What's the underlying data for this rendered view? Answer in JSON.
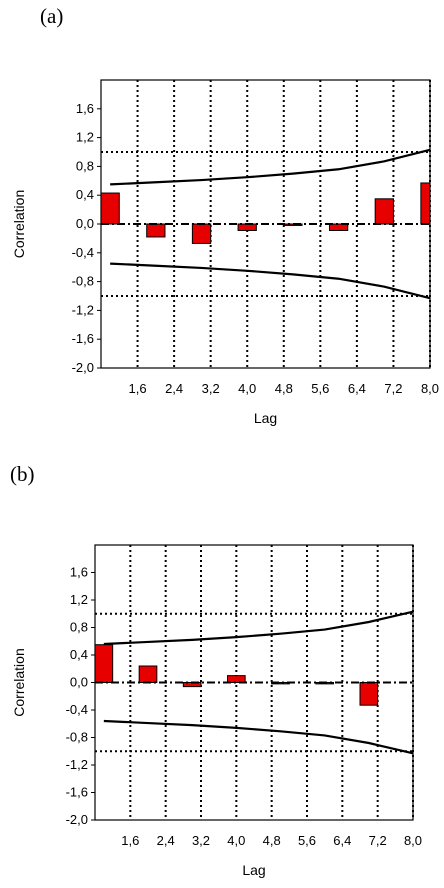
{
  "chart_data": [
    {
      "panel": "(a)",
      "type": "bar",
      "xlabel": "Lag",
      "ylabel": "Correlation",
      "xlim": [
        0.8,
        8.0
      ],
      "ylim": [
        -2.0,
        2.0
      ],
      "x_ticks": [
        "1,6",
        "2,4",
        "3,2",
        "4,0",
        "4,8",
        "5,6",
        "6,4",
        "7,2",
        "8,0"
      ],
      "y_ticks": [
        "1,6",
        "1,2",
        "0,8",
        "0,4",
        "0,0",
        "-0,4",
        "-0,8",
        "-1,2",
        "-1,6",
        "-2,0"
      ],
      "x": [
        1,
        2,
        3,
        4,
        5,
        6,
        7,
        8
      ],
      "values": [
        0.43,
        -0.18,
        -0.27,
        -0.09,
        -0.02,
        -0.09,
        0.35,
        0.57
      ],
      "confidence_upper": [
        0.55,
        0.58,
        0.61,
        0.65,
        0.7,
        0.76,
        0.87,
        1.03
      ],
      "confidence_lower": [
        -0.55,
        -0.58,
        -0.61,
        -0.65,
        -0.7,
        -0.76,
        -0.87,
        -1.03
      ],
      "reference_lines": [
        1.0,
        -1.0
      ],
      "bar_color": "#e60000",
      "grid": true
    },
    {
      "panel": "(b)",
      "type": "bar",
      "xlabel": "Lag",
      "ylabel": "Correlation",
      "xlim": [
        0.8,
        8.0
      ],
      "ylim": [
        -2.0,
        2.0
      ],
      "x_ticks": [
        "1,6",
        "2,4",
        "3,2",
        "4,0",
        "4,8",
        "5,6",
        "6,4",
        "7,2",
        "8,0"
      ],
      "y_ticks": [
        "1,6",
        "1,2",
        "0,8",
        "0,4",
        "0,0",
        "-0,4",
        "-0,8",
        "-1,2",
        "-1,6",
        "-2,0"
      ],
      "x": [
        1,
        2,
        3,
        4,
        5,
        6,
        7,
        8
      ],
      "values": [
        0.55,
        0.24,
        -0.06,
        0.1,
        -0.02,
        -0.02,
        -0.33,
        0.0
      ],
      "confidence_upper": [
        0.56,
        0.59,
        0.62,
        0.66,
        0.71,
        0.77,
        0.88,
        1.03
      ],
      "confidence_lower": [
        -0.56,
        -0.59,
        -0.62,
        -0.66,
        -0.71,
        -0.77,
        -0.88,
        -1.03
      ],
      "reference_lines": [
        1.0,
        -1.0
      ],
      "bar_color": "#e60000",
      "grid": true
    }
  ]
}
